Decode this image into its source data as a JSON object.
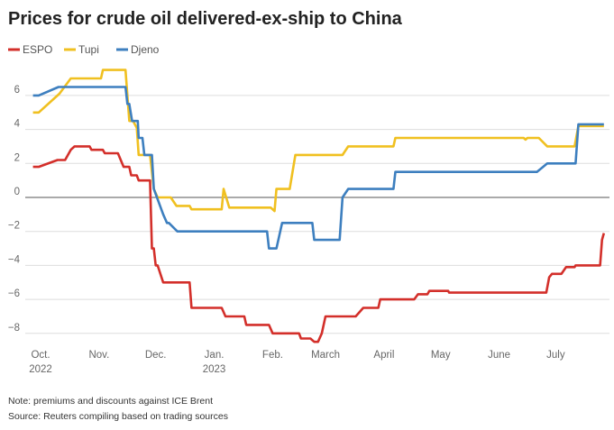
{
  "chart_data": {
    "type": "line",
    "title": "Prices for crude oil delivered-ex-ship to China",
    "xlabel": "",
    "ylabel": "",
    "x_unit": "days since Oct. 1, 2022",
    "xlim": [
      -5,
      300
    ],
    "ylim": [
      -8.8,
      7.8
    ],
    "grid": true,
    "legend_position": "top-left",
    "y_ticks": [
      6,
      4,
      2,
      0,
      -2,
      -4,
      -6,
      -8
    ],
    "y_tick_labels": [
      "6",
      "4",
      "2",
      "0",
      "−2",
      "−4",
      "−6",
      "−8"
    ],
    "x_ticks": [
      {
        "day": 0,
        "label": "Oct.",
        "sub": "2022"
      },
      {
        "day": 31,
        "label": "Nov.",
        "sub": ""
      },
      {
        "day": 61,
        "label": "Dec.",
        "sub": ""
      },
      {
        "day": 92,
        "label": "Jan.",
        "sub": "2023"
      },
      {
        "day": 123,
        "label": "Feb.",
        "sub": ""
      },
      {
        "day": 151,
        "label": "March",
        "sub": ""
      },
      {
        "day": 182,
        "label": "April",
        "sub": ""
      },
      {
        "day": 212,
        "label": "May",
        "sub": ""
      },
      {
        "day": 243,
        "label": "June",
        "sub": ""
      },
      {
        "day": 273,
        "label": "July",
        "sub": ""
      }
    ],
    "series": [
      {
        "name": "ESPO",
        "color": "#d32f2a",
        "points": [
          [
            -4,
            1.8
          ],
          [
            -1,
            1.8
          ],
          [
            9,
            2.2
          ],
          [
            13,
            2.2
          ],
          [
            16,
            2.8
          ],
          [
            18,
            3.0
          ],
          [
            26,
            3.0
          ],
          [
            27,
            2.8
          ],
          [
            33,
            2.8
          ],
          [
            34,
            2.6
          ],
          [
            41,
            2.6
          ],
          [
            44,
            1.8
          ],
          [
            47,
            1.8
          ],
          [
            48,
            1.3
          ],
          [
            51,
            1.3
          ],
          [
            52,
            1.0
          ],
          [
            58,
            1.0
          ],
          [
            59,
            -3
          ],
          [
            60,
            -3
          ],
          [
            61,
            -4
          ],
          [
            62,
            -4
          ],
          [
            65,
            -5
          ],
          [
            79,
            -5
          ],
          [
            80,
            -6.5
          ],
          [
            96,
            -6.5
          ],
          [
            98,
            -7
          ],
          [
            108,
            -7
          ],
          [
            109,
            -7.5
          ],
          [
            121,
            -7.5
          ],
          [
            123,
            -8
          ],
          [
            137,
            -8
          ],
          [
            138,
            -8.3
          ],
          [
            143,
            -8.3
          ],
          [
            145,
            -8.5
          ],
          [
            147,
            -8.5
          ],
          [
            149,
            -8
          ],
          [
            151,
            -7
          ],
          [
            167,
            -7
          ],
          [
            171,
            -6.5
          ],
          [
            179,
            -6.5
          ],
          [
            180,
            -6
          ],
          [
            198,
            -6
          ],
          [
            200,
            -5.7
          ],
          [
            205,
            -5.7
          ],
          [
            206,
            -5.5
          ],
          [
            216,
            -5.5
          ],
          [
            216.5,
            -5.6
          ],
          [
            268,
            -5.6
          ],
          [
            269.5,
            -4.7
          ],
          [
            271,
            -4.5
          ],
          [
            276,
            -4.5
          ],
          [
            278.5,
            -4.1
          ],
          [
            283,
            -4.1
          ],
          [
            283.5,
            -4
          ],
          [
            296.5,
            -4
          ],
          [
            297.5,
            -2.5
          ],
          [
            298.5,
            -2.1
          ]
        ]
      },
      {
        "name": "Tupi",
        "color": "#f0c020",
        "points": [
          [
            -4,
            5
          ],
          [
            -1,
            5
          ],
          [
            9,
            6
          ],
          [
            10,
            6.1
          ],
          [
            16,
            7
          ],
          [
            32,
            7
          ],
          [
            33,
            7.5
          ],
          [
            45,
            7.5
          ],
          [
            47,
            4.5
          ],
          [
            49,
            4.5
          ],
          [
            51,
            4.1
          ],
          [
            52,
            2.5
          ],
          [
            58,
            2.5
          ],
          [
            60,
            0.5
          ],
          [
            62,
            0
          ],
          [
            69,
            0
          ],
          [
            72,
            -0.5
          ],
          [
            79,
            -0.5
          ],
          [
            80,
            -0.7
          ],
          [
            96,
            -0.7
          ],
          [
            97,
            0.5
          ],
          [
            100,
            -0.6
          ],
          [
            122,
            -0.6
          ],
          [
            124,
            -0.8
          ],
          [
            125,
            0.5
          ],
          [
            132,
            0.5
          ],
          [
            135,
            2.5
          ],
          [
            160,
            2.5
          ],
          [
            163,
            3
          ],
          [
            187,
            3
          ],
          [
            188,
            3.5
          ],
          [
            256,
            3.5
          ],
          [
            257,
            3.4
          ],
          [
            258,
            3.5
          ],
          [
            264,
            3.5
          ],
          [
            268.5,
            3
          ],
          [
            283,
            3
          ],
          [
            285,
            4.2
          ],
          [
            298.5,
            4.2
          ]
        ]
      },
      {
        "name": "Djeno",
        "color": "#3d7fbf",
        "points": [
          [
            -4,
            6
          ],
          [
            -1,
            6
          ],
          [
            9.5,
            6.5
          ],
          [
            45,
            6.5
          ],
          [
            46,
            5.5
          ],
          [
            47,
            5.5
          ],
          [
            48.5,
            4.5
          ],
          [
            51.5,
            4.5
          ],
          [
            52,
            3.5
          ],
          [
            54,
            3.5
          ],
          [
            55,
            2.5
          ],
          [
            59,
            2.5
          ],
          [
            60,
            0.5
          ],
          [
            65,
            -1
          ],
          [
            67,
            -1.5
          ],
          [
            68,
            -1.5
          ],
          [
            72.5,
            -2
          ],
          [
            120,
            -2
          ],
          [
            121,
            -3
          ],
          [
            125,
            -3
          ],
          [
            128,
            -1.5
          ],
          [
            144,
            -1.5
          ],
          [
            145,
            -2.5
          ],
          [
            158.5,
            -2.5
          ],
          [
            160,
            0
          ],
          [
            163,
            0.5
          ],
          [
            187,
            0.5
          ],
          [
            188,
            1.5
          ],
          [
            263,
            1.5
          ],
          [
            268.5,
            2
          ],
          [
            283.5,
            2
          ],
          [
            285,
            4.3
          ],
          [
            298.5,
            4.3
          ]
        ]
      }
    ],
    "notes": [
      "Note: premiums and discounts against ICE Brent",
      "Source: Reuters compiling based on trading sources"
    ]
  }
}
